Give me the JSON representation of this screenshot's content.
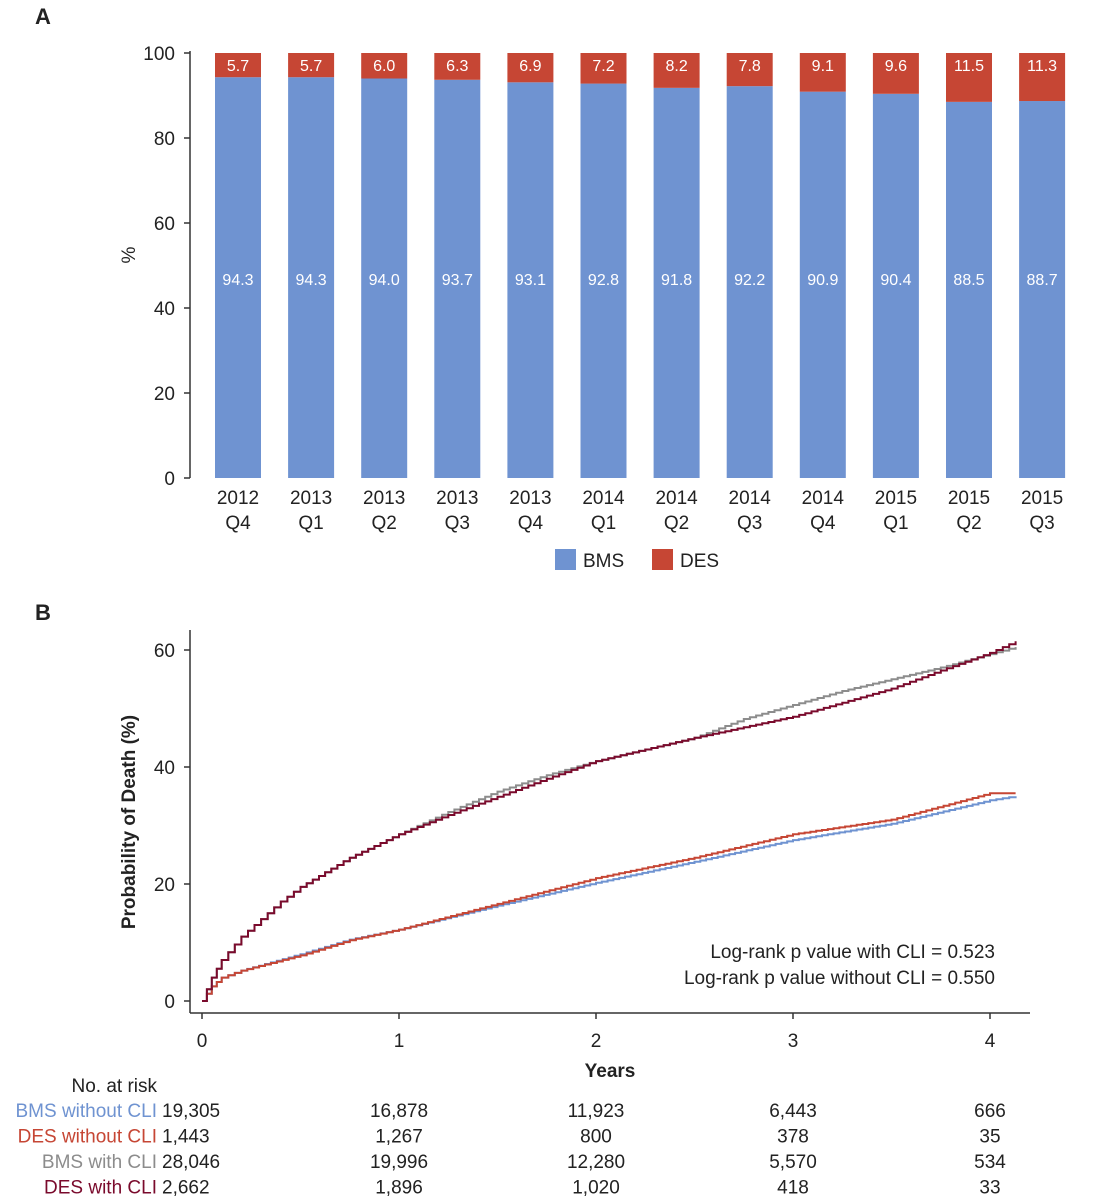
{
  "chart_data": [
    {
      "panel_label": "A",
      "type": "bar",
      "stacked": true,
      "ylabel": "%",
      "ylim": [
        0,
        100
      ],
      "yticks": [
        0,
        20,
        40,
        60,
        80,
        100
      ],
      "categories": [
        [
          "2012",
          "Q4"
        ],
        [
          "2013",
          "Q1"
        ],
        [
          "2013",
          "Q2"
        ],
        [
          "2013",
          "Q3"
        ],
        [
          "2013",
          "Q4"
        ],
        [
          "2014",
          "Q1"
        ],
        [
          "2014",
          "Q2"
        ],
        [
          "2014",
          "Q3"
        ],
        [
          "2014",
          "Q4"
        ],
        [
          "2015",
          "Q1"
        ],
        [
          "2015",
          "Q2"
        ],
        [
          "2015",
          "Q3"
        ]
      ],
      "series": [
        {
          "name": "BMS",
          "color": "#6f93d1",
          "values": [
            94.3,
            94.3,
            94.0,
            93.7,
            93.1,
            92.8,
            91.8,
            92.2,
            90.9,
            90.4,
            88.5,
            88.7
          ],
          "labels": [
            "94.3",
            "94.3",
            "94.0",
            "93.7",
            "93.1",
            "92.8",
            "91.8",
            "92.2",
            "90.9",
            "90.4",
            "88.5",
            "88.7"
          ]
        },
        {
          "name": "DES",
          "color": "#c64634",
          "values": [
            5.7,
            5.7,
            6.0,
            6.3,
            6.9,
            7.2,
            8.2,
            7.8,
            9.1,
            9.6,
            11.5,
            11.3
          ],
          "labels": [
            "5.7",
            "5.7",
            "6.0",
            "6.3",
            "6.9",
            "7.2",
            "8.2",
            "7.8",
            "9.1",
            "9.6",
            "11.5",
            "11.3"
          ]
        }
      ],
      "grid": false,
      "legend_placement": "bottom"
    },
    {
      "panel_label": "B",
      "type": "line",
      "step": true,
      "xlabel": "Years",
      "ylabel": "Probability of Death (%)",
      "xlim": [
        0,
        4.2
      ],
      "ylim": [
        0,
        65
      ],
      "xticks": [
        0,
        1,
        2,
        3,
        4
      ],
      "yticks": [
        0,
        20,
        40,
        60
      ],
      "grid": false,
      "annotations": [
        "Log-rank p value with CLI = 0.523",
        "Log-rank p value without CLI = 0.550"
      ],
      "series": [
        {
          "name": "BMS without CLI",
          "color": "#6f93d1",
          "x": [
            0,
            0.05,
            0.1,
            0.2,
            0.5,
            0.75,
            1,
            1.5,
            2,
            2.5,
            3,
            3.5,
            4,
            4.13
          ],
          "y": [
            0,
            2.5,
            4,
            5.2,
            8,
            10.5,
            12.2,
            16.3,
            20.2,
            23.8,
            27.5,
            30.3,
            34.3,
            35
          ]
        },
        {
          "name": "DES without CLI",
          "color": "#c64634",
          "x": [
            0,
            0.05,
            0.1,
            0.2,
            0.5,
            0.75,
            1,
            1.5,
            2,
            2.5,
            3,
            3.5,
            4,
            4.13
          ],
          "y": [
            0,
            2.5,
            4,
            5.2,
            7.8,
            10.4,
            12.2,
            16.6,
            21,
            24.5,
            28.5,
            31,
            35.5,
            35.5
          ]
        },
        {
          "name": "BMS with CLI",
          "color": "#8c8c8c",
          "x": [
            0,
            0.05,
            0.1,
            0.2,
            0.3,
            0.4,
            0.5,
            0.75,
            1,
            1.25,
            1.5,
            1.75,
            2,
            2.25,
            2.5,
            2.75,
            3,
            3.25,
            3.5,
            3.75,
            4,
            4.13
          ],
          "y": [
            0,
            4,
            7,
            11,
            14,
            17,
            19.5,
            24.5,
            28.5,
            32.3,
            35.8,
            38.6,
            41,
            43,
            45,
            48.2,
            50.6,
            53,
            55,
            57,
            59.3,
            60.5
          ]
        },
        {
          "name": "DES with CLI",
          "color": "#7a0a2c",
          "x": [
            0,
            0.05,
            0.1,
            0.2,
            0.3,
            0.4,
            0.5,
            0.75,
            1,
            1.25,
            1.5,
            1.75,
            2,
            2.25,
            2.5,
            2.75,
            3,
            3.25,
            3.5,
            3.75,
            4,
            4.13
          ],
          "y": [
            0,
            4,
            7,
            11,
            14,
            17,
            19.5,
            24.5,
            28.5,
            31.8,
            34.9,
            38,
            41,
            43,
            45,
            46.8,
            48.6,
            51,
            53.4,
            56.5,
            59.5,
            61.5
          ]
        }
      ],
      "risk_table": {
        "title": "No. at risk",
        "times": [
          0,
          1,
          2,
          3,
          4
        ],
        "rows": [
          {
            "name": "BMS without CLI",
            "color": "#6f93d1",
            "values": [
              "19,305",
              "16,878",
              "11,923",
              "6,443",
              "666"
            ]
          },
          {
            "name": "DES without CLI",
            "color": "#c64634",
            "values": [
              "1,443",
              "1,267",
              "800",
              "378",
              "35"
            ]
          },
          {
            "name": "BMS with CLI",
            "color": "#8c8c8c",
            "values": [
              "28,046",
              "19,996",
              "12,280",
              "5,570",
              "534"
            ]
          },
          {
            "name": "DES with CLI",
            "color": "#7a0a2c",
            "values": [
              "2,662",
              "1,896",
              "1,020",
              "418",
              "33"
            ]
          }
        ]
      }
    }
  ]
}
